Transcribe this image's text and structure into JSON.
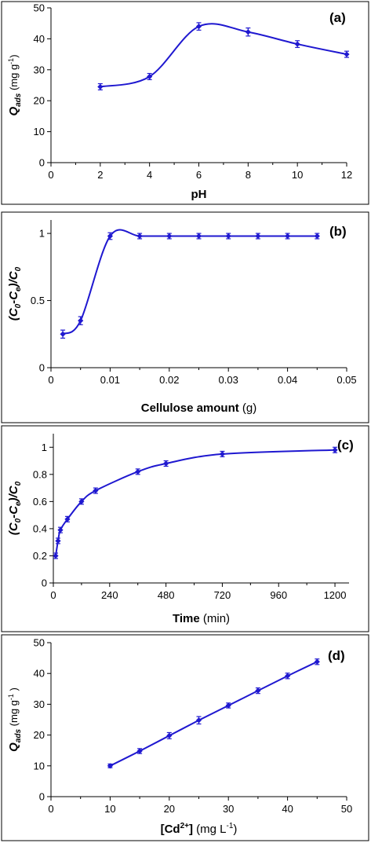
{
  "style": {
    "series_color": "#1f18d0",
    "frame_color": "#000000"
  },
  "chart_data": [
    {
      "type": "line",
      "panel_label": "(a)",
      "xlabel": "pH",
      "ylabel_main": "Q",
      "ylabel_sub": "ads",
      "ylabel_unit": " (mg g",
      "ylabel_unit_sup": "-1",
      "ylabel_unit_end": ")",
      "xlim": [
        0,
        12
      ],
      "ylim": [
        0,
        50
      ],
      "xticks": [
        "0",
        "2",
        "4",
        "6",
        "8",
        "10",
        "12"
      ],
      "yticks": [
        "0",
        "10",
        "20",
        "30",
        "40",
        "50"
      ],
      "x": [
        2,
        4,
        6,
        8,
        10,
        12
      ],
      "y": [
        24.5,
        27.8,
        44.0,
        42.2,
        38.3,
        35.0
      ],
      "err": [
        1.0,
        1.0,
        1.2,
        1.3,
        1.1,
        1.0
      ],
      "grid": false
    },
    {
      "type": "line",
      "panel_label": "(b)",
      "xlabel_main": "Cellulose amount",
      "xlabel_unit": " (g)",
      "ylabel_html": "(C0-Ce)/C0",
      "xlim": [
        0,
        0.05
      ],
      "ylim": [
        0,
        1.1
      ],
      "xticks": [
        "0",
        "0.01",
        "0.02",
        "0.03",
        "0.04",
        "0.05"
      ],
      "yticks": [
        "0",
        "0.5",
        "1"
      ],
      "x": [
        0.002,
        0.005,
        0.01,
        0.015,
        0.02,
        0.025,
        0.03,
        0.035,
        0.04,
        0.045
      ],
      "y": [
        0.25,
        0.35,
        0.98,
        0.98,
        0.98,
        0.98,
        0.98,
        0.98,
        0.98,
        0.98
      ],
      "err": [
        0.03,
        0.03,
        0.025,
        0.02,
        0.02,
        0.02,
        0.02,
        0.02,
        0.02,
        0.02
      ],
      "grid": false
    },
    {
      "type": "line",
      "panel_label": "(c)",
      "xlabel_main": "Time",
      "xlabel_unit": " (min)",
      "ylabel_html": "(C0-Ce)/C0",
      "xlim": [
        0,
        1260
      ],
      "ylim": [
        0,
        1.1
      ],
      "xticks": [
        "0",
        "240",
        "480",
        "720",
        "960",
        "1200"
      ],
      "xtick_values": [
        0,
        240,
        480,
        720,
        960,
        1200
      ],
      "yticks": [
        "0",
        "0.2",
        "0.4",
        "0.6",
        "0.8",
        "1"
      ],
      "x": [
        10,
        20,
        30,
        60,
        120,
        180,
        360,
        480,
        720,
        1200
      ],
      "y": [
        0.2,
        0.31,
        0.39,
        0.47,
        0.6,
        0.68,
        0.82,
        0.88,
        0.95,
        0.98
      ],
      "err": [
        0.02,
        0.02,
        0.02,
        0.02,
        0.02,
        0.02,
        0.02,
        0.02,
        0.02,
        0.02
      ],
      "grid": false
    },
    {
      "type": "line",
      "panel_label": "(d)",
      "xlabel_main": "[Cd",
      "xlabel_main_sup": "2+",
      "xlabel_main_end": "]",
      "xlabel_unit": " (mg L",
      "xlabel_unit_sup": "-1",
      "xlabel_unit_end": ")",
      "ylabel_main": "Q",
      "ylabel_sub": "ads",
      "ylabel_unit": " (mg g",
      "ylabel_unit_sup": "-1",
      "ylabel_unit_end": " )",
      "xlim": [
        0,
        50
      ],
      "ylim": [
        0,
        50
      ],
      "xticks": [
        "0",
        "10",
        "20",
        "30",
        "40",
        "50"
      ],
      "yticks": [
        "0",
        "10",
        "20",
        "30",
        "40",
        "50"
      ],
      "x": [
        10,
        15,
        20,
        25,
        30,
        35,
        40,
        45
      ],
      "y": [
        10.0,
        14.8,
        19.8,
        24.8,
        29.6,
        34.4,
        39.2,
        43.8
      ],
      "err": [
        0.6,
        0.8,
        1.0,
        1.2,
        0.8,
        0.9,
        0.9,
        0.9
      ],
      "grid": false
    }
  ]
}
